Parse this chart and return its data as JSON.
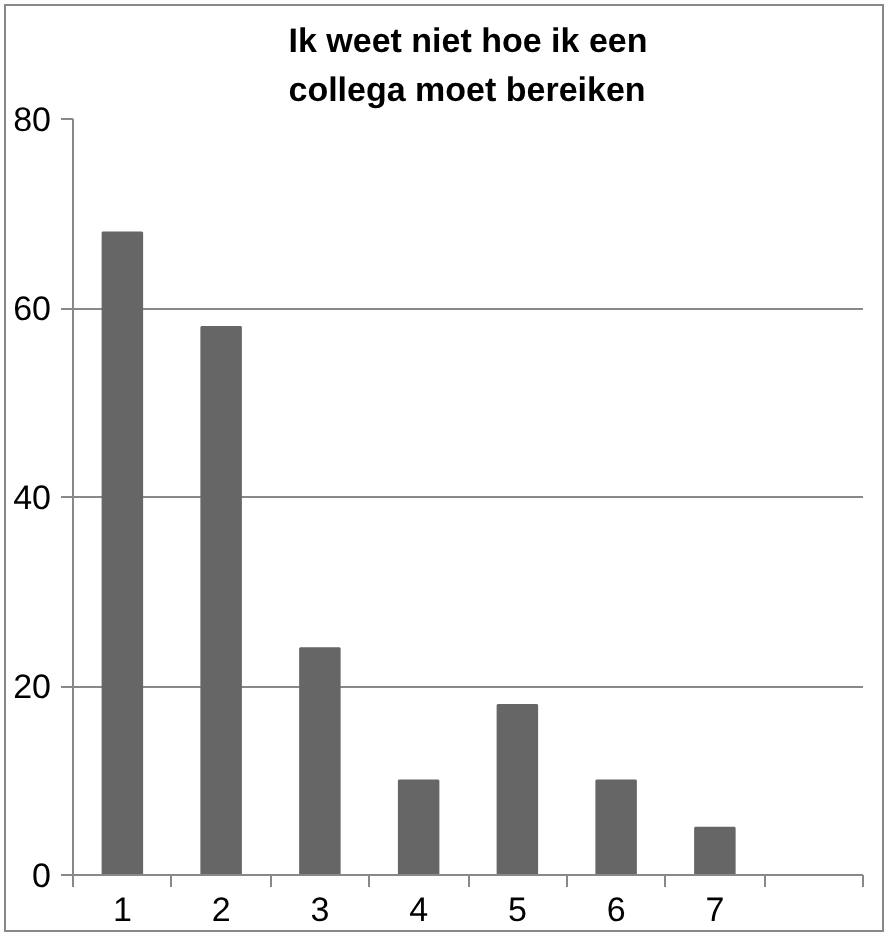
{
  "chart_data": {
    "type": "bar",
    "title": "Ik weet niet hoe ik een collega moet bereiken",
    "categories": [
      "1",
      "2",
      "3",
      "4",
      "5",
      "6",
      "7",
      null
    ],
    "values": [
      68,
      58,
      24,
      10,
      18,
      10,
      5,
      null
    ],
    "color": "#666666",
    "ylim": [
      0,
      80
    ],
    "yticks": [
      0,
      20,
      40,
      60,
      80
    ],
    "grid": "y"
  }
}
